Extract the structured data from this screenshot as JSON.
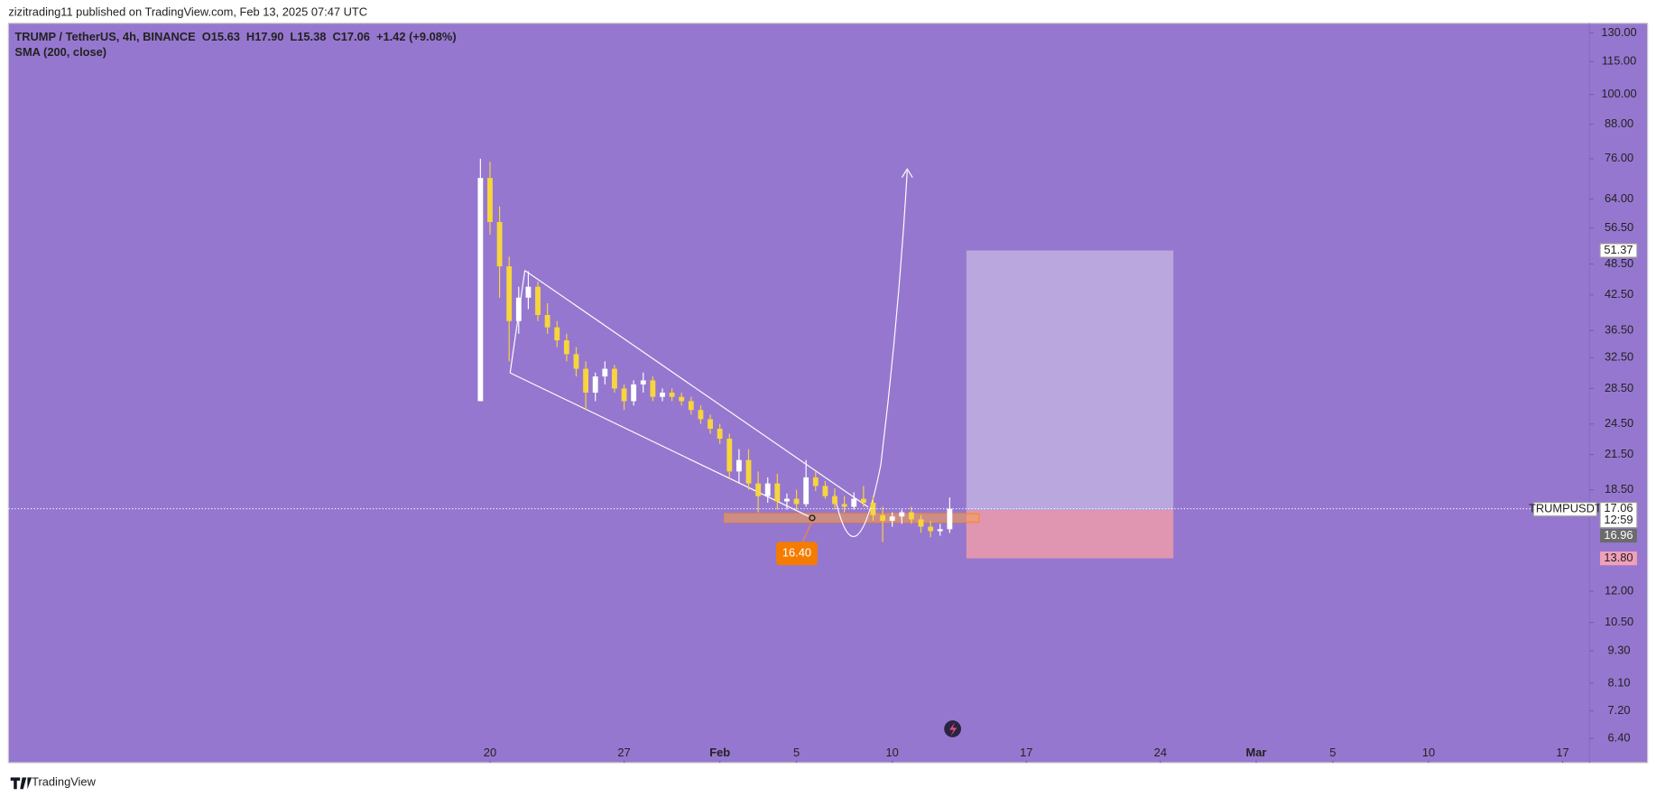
{
  "header": {
    "publisher": "zizitrading11 published on TradingView.com, Feb 13, 2025 07:47 UTC"
  },
  "chart_data": {
    "type": "candlestick",
    "title": "TRUMP / TetherUS, 4h, BINANCE",
    "legend_values": [
      "O15.63",
      "H17.90",
      "L15.38",
      "C17.06",
      "+1.42 (+9.08%)"
    ],
    "indicator": "SMA (200, close)",
    "log_scale": true,
    "grid": false,
    "series": [
      {
        "name": "TRUMPUSDT",
        "up_color": "#ffffff",
        "down_color": "#f7d53c",
        "x": [
          19.5,
          20,
          20.5,
          21,
          21.5,
          22,
          22.5,
          23,
          23.5,
          24,
          24.5,
          25,
          25.5,
          26,
          26.5,
          27,
          27.5,
          28,
          28.5,
          29,
          29.5,
          30,
          30.5,
          31,
          31.5,
          32,
          32.5,
          33,
          33.5,
          34,
          34.5,
          35,
          35.5,
          36,
          36.5,
          37,
          37.5,
          38,
          38.5,
          39,
          39.5,
          40,
          40.5,
          41,
          41.5,
          42,
          42.5,
          43,
          43.5,
          44
        ],
        "open": [
          27,
          70,
          58,
          48,
          38,
          42,
          44,
          39,
          37,
          35,
          33,
          31,
          28,
          30,
          31,
          28.5,
          27,
          29,
          29.5,
          27.5,
          28,
          27.5,
          27,
          26,
          25,
          24,
          23,
          20,
          21,
          19,
          18,
          19,
          17.6,
          17.8,
          17.4,
          19.5,
          18.8,
          18,
          17.4,
          17.2,
          17.8,
          17.5,
          16.6,
          16.2,
          16.5,
          16.8,
          16.3,
          15.8,
          15.5,
          15.63
        ],
        "high": [
          76,
          75,
          62,
          50,
          44,
          47,
          45,
          41,
          38,
          36,
          34,
          32,
          30.5,
          32,
          31.5,
          29,
          29.5,
          30.5,
          30,
          28.5,
          28.5,
          28,
          27.5,
          26.5,
          25.5,
          24.5,
          23.5,
          22,
          22,
          20,
          19.5,
          19.8,
          18.2,
          18.5,
          21,
          20,
          19.2,
          18.6,
          18,
          18.3,
          18.8,
          18,
          17.2,
          16.8,
          17,
          17.2,
          16.6,
          16.2,
          16,
          17.9
        ],
        "low": [
          27,
          55,
          42,
          32,
          36,
          40,
          38,
          36,
          34,
          32,
          30,
          26,
          27,
          29,
          28,
          26,
          26.5,
          28,
          27,
          27,
          27,
          26.5,
          25.5,
          24.5,
          23.5,
          22.5,
          19.5,
          19,
          18.5,
          16.8,
          17.5,
          17,
          17,
          17,
          17.2,
          18.4,
          17.8,
          17,
          16.8,
          17,
          17.2,
          16.2,
          14.8,
          15.8,
          16,
          16,
          15.4,
          15.1,
          15.2,
          15.38
        ],
        "close": [
          70,
          58,
          48,
          38,
          42,
          44,
          39,
          37,
          35,
          33,
          31,
          28,
          30,
          31,
          28.5,
          27,
          29,
          29.5,
          27.5,
          28,
          27.5,
          27,
          26,
          25,
          24,
          23,
          20,
          21,
          19,
          18,
          19,
          17.6,
          17.8,
          17.4,
          19.5,
          18.8,
          18,
          17.4,
          17.2,
          17.8,
          17.5,
          16.6,
          16.2,
          16.5,
          16.8,
          16.3,
          15.8,
          15.5,
          15.63,
          17.06
        ]
      }
    ],
    "xlim": [
      -5.14,
      77.4
    ],
    "xticks": [
      20,
      27,
      {
        "value": 32,
        "label": "Feb"
      },
      {
        "value": 36,
        "label": "5"
      },
      {
        "value": 41,
        "label": "10"
      },
      {
        "value": 48,
        "label": "17"
      },
      {
        "value": 55,
        "label": "24"
      },
      {
        "value": 60,
        "label": "Mar"
      },
      {
        "value": 64,
        "label": "5"
      },
      {
        "value": 69,
        "label": "10"
      },
      {
        "value": 76,
        "label": "17"
      }
    ],
    "ylim": [
      5.77,
      135.5
    ],
    "yticks": [
      {
        "value": 130,
        "label": "130.00"
      },
      {
        "value": 115,
        "label": "115.00"
      },
      {
        "value": 100,
        "label": "100.00"
      },
      {
        "value": 88,
        "label": "88.00"
      },
      {
        "value": 76,
        "label": "76.00"
      },
      {
        "value": 64,
        "label": "64.00"
      },
      {
        "value": 56.5,
        "label": "56.50"
      },
      {
        "value": 48.5,
        "label": "48.50"
      },
      {
        "value": 42.5,
        "label": "42.50"
      },
      {
        "value": 36.5,
        "label": "36.50"
      },
      {
        "value": 32.5,
        "label": "32.50"
      },
      {
        "value": 28.5,
        "label": "28.50"
      },
      {
        "value": 24.5,
        "label": "24.50"
      },
      {
        "value": 21.5,
        "label": "21.50"
      },
      {
        "value": 18.5,
        "label": "18.50"
      },
      {
        "value": 12,
        "label": "12.00"
      },
      {
        "value": 10.5,
        "label": "10.50"
      },
      {
        "value": 9.3,
        "label": "9.30"
      },
      {
        "value": 8.1,
        "label": "8.10"
      },
      {
        "value": 7.2,
        "label": "7.20"
      },
      {
        "value": 6.4,
        "label": "6.40"
      }
    ],
    "last_price": 17.06,
    "countdown": "12:59",
    "position": {
      "target": 51.37,
      "entry": 16.96,
      "stop": {
        "value": 13.8,
        "label": "13.80"
      }
    },
    "support_level": {
      "value": 16.4,
      "label": "16.40"
    }
  },
  "footer": {
    "brand": "TradingView"
  }
}
